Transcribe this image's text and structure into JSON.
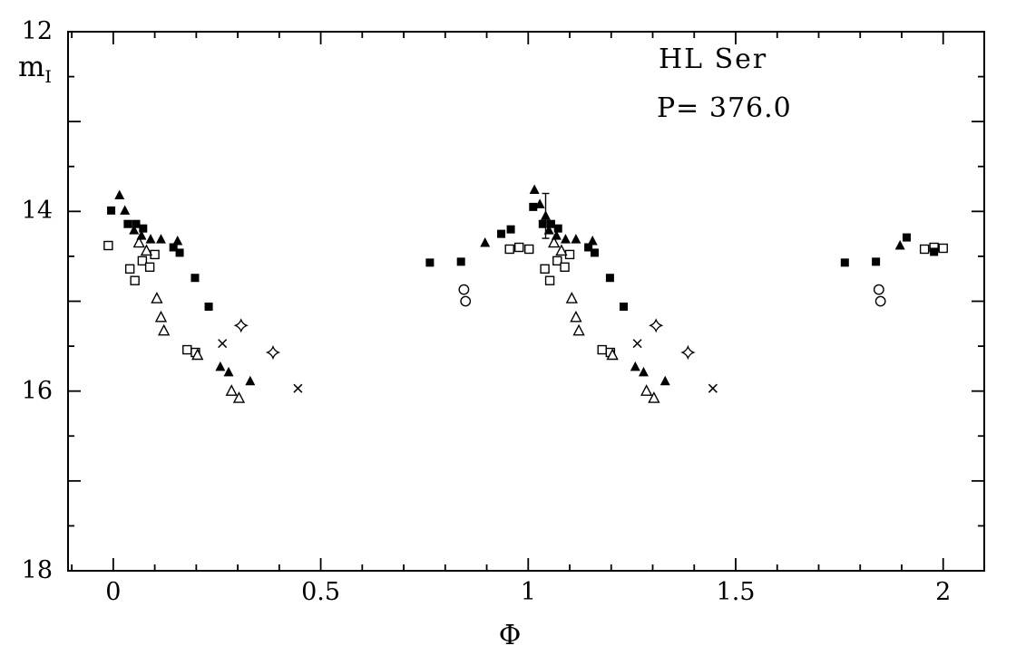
{
  "chart_data": {
    "type": "scatter",
    "title": "HL Ser",
    "period_label": "P= 376.0",
    "xlabel": "Φ",
    "ylabel": "m_I",
    "ylabel_main": "m",
    "ylabel_sub": "I",
    "xlim": [
      -0.109,
      2.099
    ],
    "ylim": [
      18,
      12
    ],
    "grid": false,
    "legend": "none",
    "x_ticks": [
      0,
      0.5,
      1,
      1.5,
      2
    ],
    "x_tick_labels": [
      "0",
      "0.5",
      "1",
      "1.5",
      "2"
    ],
    "x_minor_step": 0.1,
    "y_labeled_ticks": [
      12,
      14,
      16,
      18
    ],
    "y_tick_labels": [
      "12",
      "14",
      "16",
      "18"
    ],
    "y_major_step": 1,
    "y_minor_step": 0.5,
    "series": [
      {
        "name": "open squares",
        "marker": "open-square",
        "points": [
          [
            -0.012,
            14.38
          ],
          [
            0.04,
            14.64
          ],
          [
            0.052,
            14.77
          ],
          [
            0.07,
            14.55
          ],
          [
            0.088,
            14.62
          ],
          [
            0.1,
            14.48
          ],
          [
            0.178,
            15.54
          ],
          [
            0.198,
            15.57
          ],
          [
            0.955,
            14.42
          ],
          [
            0.978,
            14.4
          ],
          [
            1.002,
            14.42
          ],
          [
            1.04,
            14.64
          ],
          [
            1.052,
            14.77
          ],
          [
            1.07,
            14.55
          ],
          [
            1.088,
            14.62
          ],
          [
            1.1,
            14.48
          ],
          [
            1.178,
            15.54
          ],
          [
            1.198,
            15.57
          ],
          [
            1.955,
            14.42
          ],
          [
            1.978,
            14.4
          ],
          [
            2.0,
            14.41
          ]
        ]
      },
      {
        "name": "open triangles",
        "marker": "open-triangle",
        "points": [
          [
            0.062,
            14.35
          ],
          [
            0.08,
            14.44
          ],
          [
            0.105,
            14.97
          ],
          [
            0.115,
            15.18
          ],
          [
            0.122,
            15.33
          ],
          [
            0.203,
            15.6
          ],
          [
            0.285,
            16.0
          ],
          [
            0.303,
            16.08
          ],
          [
            1.062,
            14.35
          ],
          [
            1.08,
            14.44
          ],
          [
            1.105,
            14.97
          ],
          [
            1.115,
            15.18
          ],
          [
            1.122,
            15.33
          ],
          [
            1.203,
            15.6
          ],
          [
            1.285,
            16.0
          ],
          [
            1.303,
            16.08
          ]
        ]
      },
      {
        "name": "open circles",
        "marker": "open-circle",
        "points": [
          [
            0.845,
            14.87
          ],
          [
            0.849,
            15.0
          ],
          [
            1.845,
            14.87
          ],
          [
            1.849,
            15.0
          ]
        ]
      },
      {
        "name": "crosses",
        "marker": "cross",
        "points": [
          [
            0.263,
            15.47
          ],
          [
            0.445,
            15.97
          ],
          [
            1.263,
            15.47
          ],
          [
            1.445,
            15.97
          ]
        ]
      },
      {
        "name": "four-point stars",
        "marker": "four-point-star",
        "points": [
          [
            0.308,
            15.27
          ],
          [
            0.385,
            15.57
          ],
          [
            1.308,
            15.27
          ],
          [
            1.385,
            15.57
          ]
        ]
      },
      {
        "name": "filled squares",
        "marker": "filled-square",
        "points": [
          [
            -0.005,
            13.99
          ],
          [
            0.035,
            14.14
          ],
          [
            0.055,
            14.14
          ],
          [
            0.072,
            14.19
          ],
          [
            0.145,
            14.4
          ],
          [
            0.16,
            14.46
          ],
          [
            0.197,
            14.74
          ],
          [
            0.23,
            15.06
          ],
          [
            0.763,
            14.57
          ],
          [
            0.838,
            14.56
          ],
          [
            0.935,
            14.25
          ],
          [
            0.958,
            14.2
          ],
          [
            1.012,
            13.95
          ],
          [
            1.035,
            14.14
          ],
          [
            1.055,
            14.14
          ],
          [
            1.072,
            14.19
          ],
          [
            1.145,
            14.4
          ],
          [
            1.16,
            14.46
          ],
          [
            1.197,
            14.74
          ],
          [
            1.23,
            15.06
          ],
          [
            1.763,
            14.57
          ],
          [
            1.838,
            14.56
          ],
          [
            1.912,
            14.29
          ],
          [
            1.978,
            14.45
          ]
        ]
      },
      {
        "name": "filled triangles",
        "marker": "filled-triangle",
        "points": [
          [
            0.015,
            13.82
          ],
          [
            0.028,
            13.99
          ],
          [
            0.05,
            14.21
          ],
          [
            0.068,
            14.27
          ],
          [
            0.09,
            14.31
          ],
          [
            0.115,
            14.31
          ],
          [
            0.155,
            14.33
          ],
          [
            0.258,
            15.73
          ],
          [
            0.278,
            15.79
          ],
          [
            0.33,
            15.89
          ],
          [
            0.896,
            14.35
          ],
          [
            1.015,
            13.76
          ],
          [
            1.028,
            13.92
          ],
          [
            1.042,
            14.05
          ],
          [
            1.05,
            14.21
          ],
          [
            1.068,
            14.27
          ],
          [
            1.09,
            14.31
          ],
          [
            1.115,
            14.31
          ],
          [
            1.155,
            14.33
          ],
          [
            1.258,
            15.73
          ],
          [
            1.278,
            15.79
          ],
          [
            1.33,
            15.89
          ],
          [
            1.896,
            14.38
          ]
        ]
      }
    ],
    "error_bars": [
      {
        "x": 1.042,
        "y": 14.05,
        "err": 0.25
      }
    ]
  }
}
